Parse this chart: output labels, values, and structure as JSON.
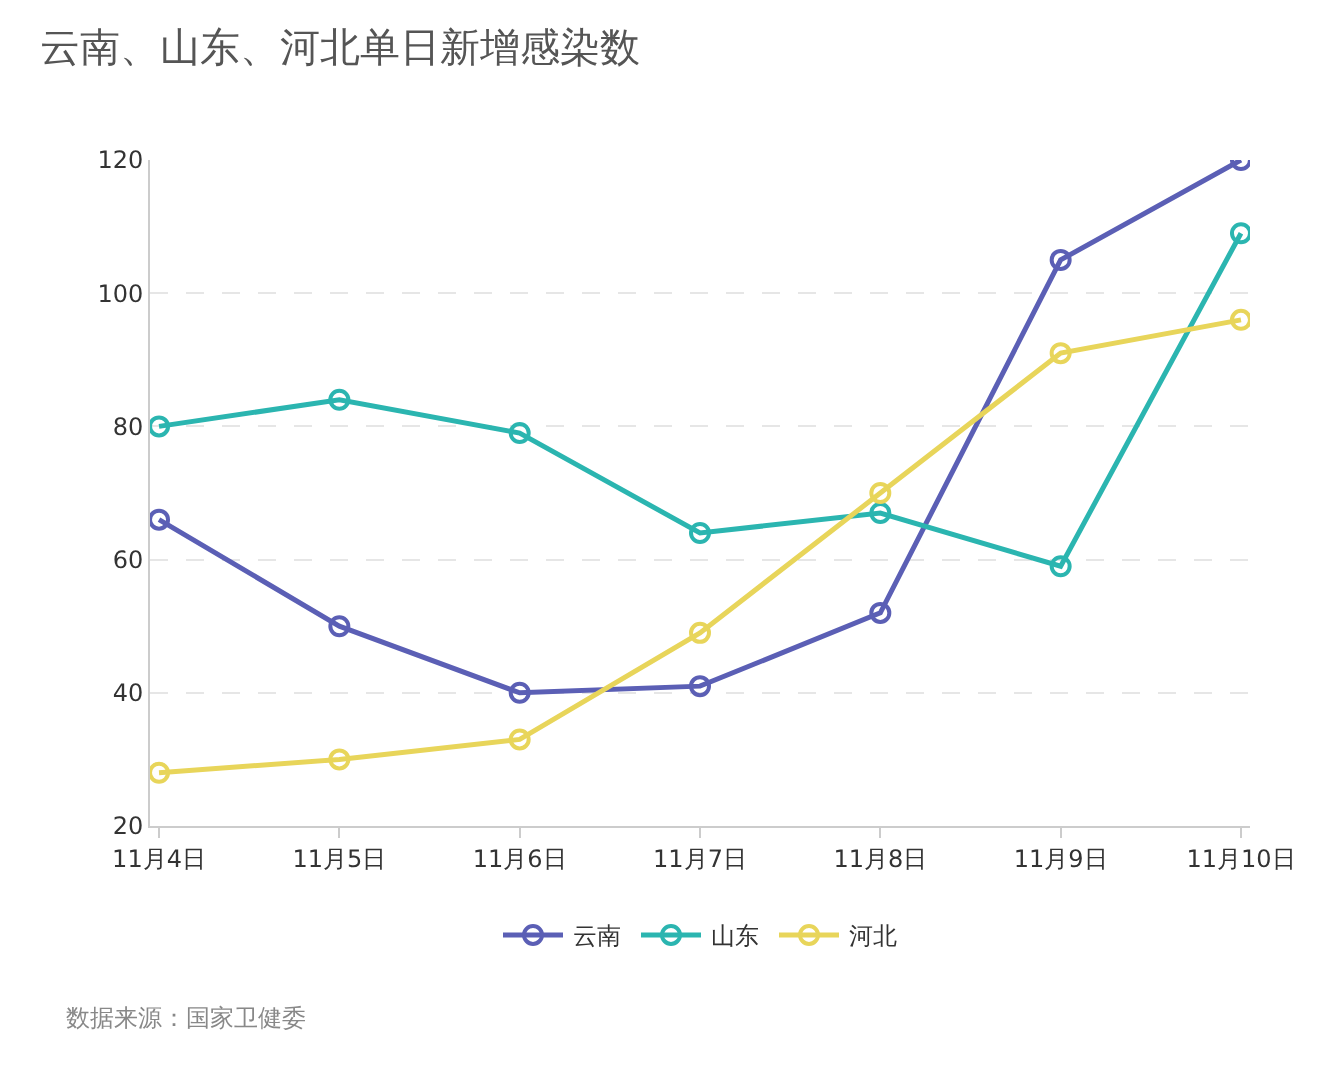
{
  "chart_data": {
    "type": "line",
    "title": "云南、山东、河北单日新增感染数",
    "categories": [
      "11月4日",
      "11月5日",
      "11月6日",
      "11月7日",
      "11月8日",
      "11月9日",
      "11月10日"
    ],
    "series": [
      {
        "name": "云南",
        "color": "#5b5fb5",
        "values": [
          66,
          50,
          40,
          41,
          52,
          105,
          120
        ]
      },
      {
        "name": "山东",
        "color": "#2bb5b0",
        "values": [
          80,
          84,
          79,
          64,
          67,
          59,
          109
        ]
      },
      {
        "name": "河北",
        "color": "#e8d55a",
        "values": [
          28,
          30,
          33,
          49,
          70,
          91,
          96
        ]
      }
    ],
    "ylim": [
      20,
      120
    ],
    "yticks": [
      20,
      40,
      60,
      80,
      100,
      120
    ],
    "grid": "y",
    "legend": "bottom",
    "marker": "circle",
    "line_style": "solid",
    "annotations": [
      "数据来源：国家卫健委"
    ]
  }
}
